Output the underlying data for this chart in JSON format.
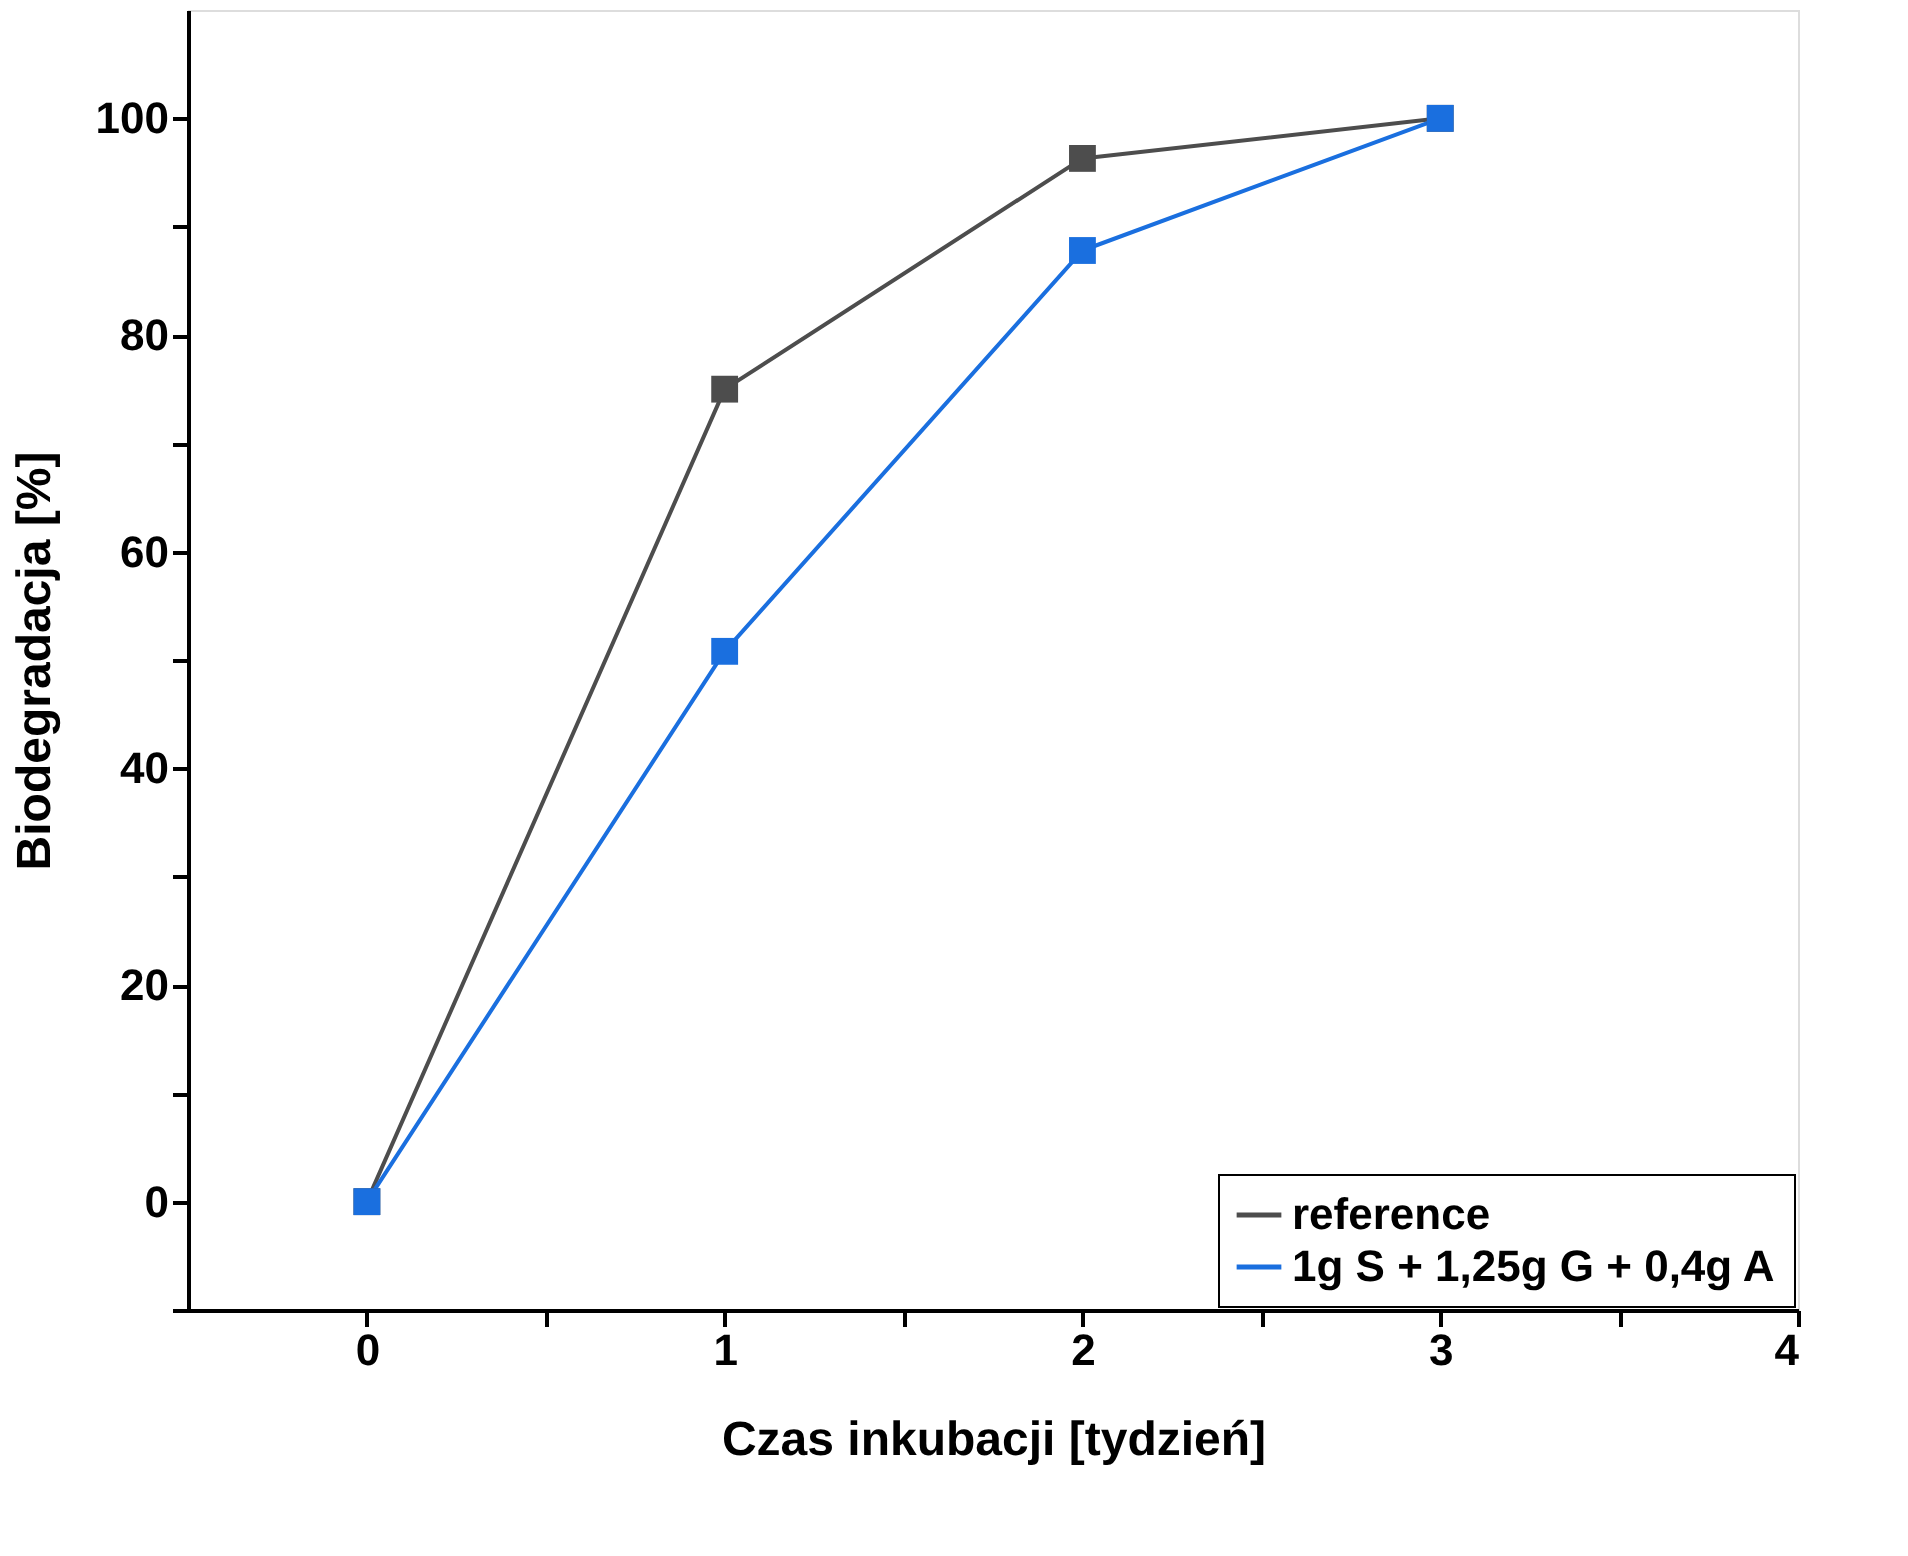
{
  "chart_data": {
    "type": "line",
    "xlabel": "Czas inkubacji [tydzień]",
    "ylabel": "Biodegradacja [%]",
    "x": [
      0,
      1,
      2,
      3
    ],
    "series": [
      {
        "name": "reference",
        "color": "#4d4d4d",
        "values": [
          0,
          75,
          96.3,
          100
        ]
      },
      {
        "name": "1g S + 1,25g G + 0,4g A",
        "color": "#1a6fdf",
        "values": [
          0,
          50.8,
          87.8,
          100
        ]
      }
    ],
    "xlim": [
      -0.5,
      4
    ],
    "xticks": [
      0,
      {
        "value": 0.5,
        "label": null
      },
      1,
      {
        "value": 1.5,
        "label": null
      },
      2,
      {
        "value": 2.5,
        "label": null
      },
      3,
      {
        "value": 3.5,
        "label": null
      },
      4
    ],
    "ylim": [
      -10,
      110
    ],
    "yticks": [
      {
        "value": -10,
        "label": null
      },
      0,
      {
        "value": 10,
        "label": null
      },
      20,
      {
        "value": 30,
        "label": null
      },
      40,
      {
        "value": 50,
        "label": null
      },
      60,
      {
        "value": 70,
        "label": null
      },
      80,
      {
        "value": 90,
        "label": null
      },
      100
    ],
    "marker": "square",
    "line_style": "solid",
    "legend": "bottom right",
    "grid": false
  }
}
